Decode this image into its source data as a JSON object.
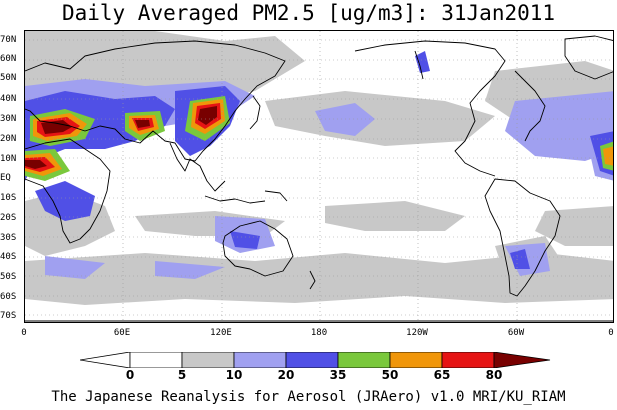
{
  "title": "Daily Averaged PM2.5 [ug/m3]: 31Jan2011",
  "credit": "The Japanese Reanalysis for Aerosol (JRAero) v1.0 MRI/KU_RIAM",
  "latitude_labels": [
    "70N",
    "60N",
    "50N",
    "40N",
    "30N",
    "20N",
    "10N",
    "EQ",
    "10S",
    "20S",
    "30S",
    "40S",
    "50S",
    "60S",
    "70S"
  ],
  "longitude_labels": [
    "0",
    "60E",
    "120E",
    "180",
    "120W",
    "60W",
    "0"
  ],
  "colorbar": {
    "ticks": [
      "0",
      "5",
      "10",
      "20",
      "35",
      "50",
      "65",
      "80"
    ],
    "colors": [
      "#ffffff",
      "#c8c8c8",
      "#a0a0f0",
      "#5050e6",
      "#7ac83c",
      "#f0960a",
      "#e61414",
      "#780000"
    ]
  },
  "colors": {
    "coastline": "#000000",
    "gridline": "#9a9a9a"
  }
}
